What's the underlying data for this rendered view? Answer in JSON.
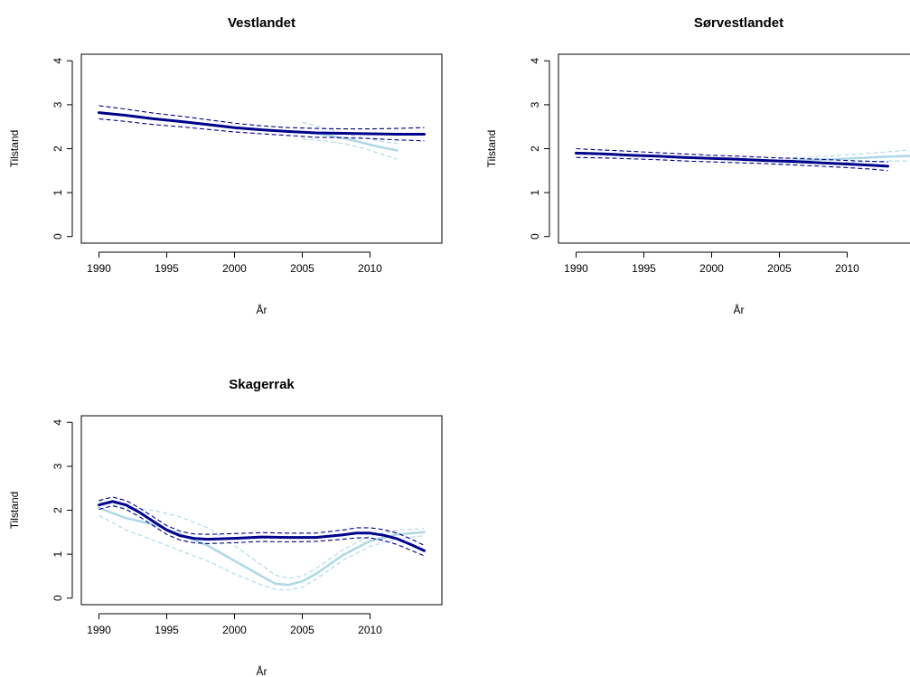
{
  "chart_data": [
    {
      "type": "line",
      "title": "Vestlandet",
      "xlabel": "År",
      "ylabel": "Tilstand",
      "xlim": [
        1988.7,
        2015.3
      ],
      "ylim": [
        -0.15,
        4.15
      ],
      "xticks": [
        "1990",
        "1995",
        "2000",
        "2005",
        "2010"
      ],
      "yticks": [
        "0",
        "1",
        "2",
        "3",
        "4"
      ],
      "grid": false,
      "series": [
        {
          "role": "trend",
          "color": "#00008b",
          "style": "solid",
          "x": [
            1990,
            1992,
            1994,
            1996,
            1998,
            2000,
            2002,
            2004,
            2006,
            2008,
            2010,
            2012,
            2014
          ],
          "y": [
            2.82,
            2.76,
            2.68,
            2.62,
            2.55,
            2.48,
            2.43,
            2.39,
            2.36,
            2.35,
            2.34,
            2.33,
            2.33
          ]
        },
        {
          "role": "trend-upper",
          "color": "#00008b",
          "style": "dashed",
          "x": [
            1990,
            1992,
            1994,
            1996,
            1998,
            2000,
            2002,
            2004,
            2006,
            2008,
            2010,
            2012,
            2014
          ],
          "y": [
            2.98,
            2.9,
            2.81,
            2.74,
            2.66,
            2.58,
            2.52,
            2.48,
            2.46,
            2.45,
            2.45,
            2.46,
            2.48
          ]
        },
        {
          "role": "trend-lower",
          "color": "#00008b",
          "style": "dashed",
          "x": [
            1990,
            1992,
            1994,
            1996,
            1998,
            2000,
            2002,
            2004,
            2006,
            2008,
            2010,
            2012,
            2014
          ],
          "y": [
            2.68,
            2.62,
            2.55,
            2.5,
            2.44,
            2.38,
            2.34,
            2.3,
            2.26,
            2.25,
            2.23,
            2.2,
            2.18
          ]
        },
        {
          "role": "recent",
          "color": "#add8e6",
          "style": "solid",
          "x": [
            2005,
            2006,
            2007,
            2008,
            2009,
            2010,
            2011,
            2012
          ],
          "y": [
            2.38,
            2.35,
            2.3,
            2.24,
            2.17,
            2.09,
            2.02,
            1.96
          ]
        },
        {
          "role": "recent-upper",
          "color": "#add8e6",
          "style": "dashed",
          "x": [
            2005,
            2006,
            2007,
            2008,
            2009,
            2010,
            2011,
            2012
          ],
          "y": [
            2.6,
            2.52,
            2.44,
            2.35,
            2.28,
            2.22,
            2.16,
            2.12
          ]
        },
        {
          "role": "recent-lower",
          "color": "#add8e6",
          "style": "dashed",
          "x": [
            2005,
            2006,
            2007,
            2008,
            2009,
            2010,
            2011,
            2012
          ],
          "y": [
            2.22,
            2.2,
            2.16,
            2.12,
            2.05,
            1.96,
            1.86,
            1.76
          ]
        }
      ]
    },
    {
      "type": "line",
      "title": "Sørvestlandet",
      "xlabel": "År",
      "ylabel": "Tilstand",
      "xlim": [
        1988.7,
        2015.3
      ],
      "ylim": [
        -0.15,
        4.15
      ],
      "xticks": [
        "1990",
        "1995",
        "2000",
        "2005",
        "2010"
      ],
      "yticks": [
        "0",
        "1",
        "2",
        "3",
        "4"
      ],
      "grid": false,
      "series": [
        {
          "role": "trend",
          "color": "#00008b",
          "style": "solid",
          "x": [
            1990,
            1992,
            1994,
            1996,
            1998,
            2000,
            2002,
            2004,
            2006,
            2008,
            2010,
            2012,
            2013
          ],
          "y": [
            1.9,
            1.88,
            1.85,
            1.83,
            1.8,
            1.78,
            1.76,
            1.73,
            1.71,
            1.68,
            1.65,
            1.62,
            1.6
          ]
        },
        {
          "role": "trend-upper",
          "color": "#00008b",
          "style": "dashed",
          "x": [
            1990,
            1992,
            1994,
            1996,
            1998,
            2000,
            2002,
            2004,
            2006,
            2008,
            2010,
            2012,
            2013
          ],
          "y": [
            2.0,
            1.97,
            1.94,
            1.91,
            1.88,
            1.85,
            1.83,
            1.8,
            1.78,
            1.76,
            1.73,
            1.71,
            1.7
          ]
        },
        {
          "role": "trend-lower",
          "color": "#00008b",
          "style": "dashed",
          "x": [
            1990,
            1992,
            1994,
            1996,
            1998,
            2000,
            2002,
            2004,
            2006,
            2008,
            2010,
            2012,
            2013
          ],
          "y": [
            1.8,
            1.79,
            1.77,
            1.75,
            1.72,
            1.7,
            1.68,
            1.66,
            1.63,
            1.6,
            1.57,
            1.53,
            1.5
          ]
        },
        {
          "role": "recent",
          "color": "#add8e6",
          "style": "solid",
          "x": [
            2005,
            2007,
            2009,
            2011,
            2013,
            2015
          ],
          "y": [
            1.72,
            1.74,
            1.76,
            1.79,
            1.82,
            1.84
          ]
        },
        {
          "role": "recent-upper",
          "color": "#add8e6",
          "style": "dashed",
          "x": [
            2005,
            2007,
            2009,
            2011,
            2013,
            2015
          ],
          "y": [
            1.78,
            1.8,
            1.84,
            1.88,
            1.93,
            1.98
          ]
        },
        {
          "role": "recent-lower",
          "color": "#add8e6",
          "style": "dashed",
          "x": [
            2005,
            2007,
            2009,
            2011,
            2013,
            2015
          ],
          "y": [
            1.66,
            1.68,
            1.69,
            1.7,
            1.72,
            1.72
          ]
        }
      ]
    },
    {
      "type": "line",
      "title": "Skagerrak",
      "xlabel": "År",
      "ylabel": "Tilstand",
      "xlim": [
        1988.7,
        2015.3
      ],
      "ylim": [
        -0.15,
        4.15
      ],
      "xticks": [
        "1990",
        "1995",
        "2000",
        "2005",
        "2010"
      ],
      "yticks": [
        "0",
        "1",
        "2",
        "3",
        "4"
      ],
      "grid": false,
      "series": [
        {
          "role": "trend",
          "color": "#00008b",
          "style": "solid",
          "x": [
            1990,
            1991,
            1992,
            1993,
            1994,
            1995,
            1996,
            1997,
            1998,
            2000,
            2002,
            2004,
            2006,
            2008,
            2009,
            2010,
            2011,
            2012,
            2013,
            2014
          ],
          "y": [
            2.12,
            2.2,
            2.12,
            1.95,
            1.75,
            1.55,
            1.42,
            1.36,
            1.34,
            1.36,
            1.39,
            1.38,
            1.38,
            1.44,
            1.48,
            1.48,
            1.43,
            1.35,
            1.22,
            1.08
          ]
        },
        {
          "role": "trend-upper",
          "color": "#00008b",
          "style": "dashed",
          "x": [
            1990,
            1991,
            1992,
            1993,
            1994,
            1995,
            1996,
            1997,
            1998,
            2000,
            2002,
            2004,
            2006,
            2008,
            2009,
            2010,
            2011,
            2012,
            2013,
            2014
          ],
          "y": [
            2.22,
            2.3,
            2.22,
            2.05,
            1.85,
            1.65,
            1.52,
            1.46,
            1.45,
            1.47,
            1.49,
            1.48,
            1.48,
            1.55,
            1.6,
            1.6,
            1.56,
            1.48,
            1.35,
            1.2
          ]
        },
        {
          "role": "trend-lower",
          "color": "#00008b",
          "style": "dashed",
          "x": [
            1990,
            1991,
            1992,
            1993,
            1994,
            1995,
            1996,
            1997,
            1998,
            2000,
            2002,
            2004,
            2006,
            2008,
            2009,
            2010,
            2011,
            2012,
            2013,
            2014
          ],
          "y": [
            2.02,
            2.1,
            2.02,
            1.85,
            1.65,
            1.45,
            1.32,
            1.26,
            1.24,
            1.26,
            1.29,
            1.28,
            1.29,
            1.34,
            1.37,
            1.37,
            1.31,
            1.22,
            1.09,
            0.96
          ]
        },
        {
          "role": "recent",
          "color": "#add8e6",
          "style": "solid",
          "x": [
            1990,
            1992,
            1994,
            1996,
            1998,
            2000,
            2002,
            2003,
            2004,
            2005,
            2006,
            2008,
            2010,
            2012,
            2014
          ],
          "y": [
            2.05,
            1.82,
            1.68,
            1.45,
            1.2,
            0.85,
            0.5,
            0.33,
            0.3,
            0.38,
            0.55,
            0.98,
            1.3,
            1.45,
            1.5
          ]
        },
        {
          "role": "recent-upper",
          "color": "#add8e6",
          "style": "dashed",
          "x": [
            1990,
            1992,
            1994,
            1996,
            1998,
            2000,
            2002,
            2003,
            2004,
            2005,
            2006,
            2008,
            2010,
            2012,
            2014
          ],
          "y": [
            2.2,
            2.05,
            2.0,
            1.85,
            1.6,
            1.2,
            0.75,
            0.52,
            0.45,
            0.5,
            0.67,
            1.1,
            1.42,
            1.55,
            1.58
          ]
        },
        {
          "role": "recent-lower",
          "color": "#add8e6",
          "style": "dashed",
          "x": [
            1990,
            1992,
            1994,
            1996,
            1998,
            2000,
            2002,
            2003,
            2004,
            2005,
            2006,
            2008,
            2010,
            2012,
            2014
          ],
          "y": [
            1.88,
            1.55,
            1.32,
            1.08,
            0.85,
            0.55,
            0.3,
            0.2,
            0.18,
            0.25,
            0.43,
            0.86,
            1.18,
            1.35,
            1.42
          ]
        }
      ]
    }
  ]
}
